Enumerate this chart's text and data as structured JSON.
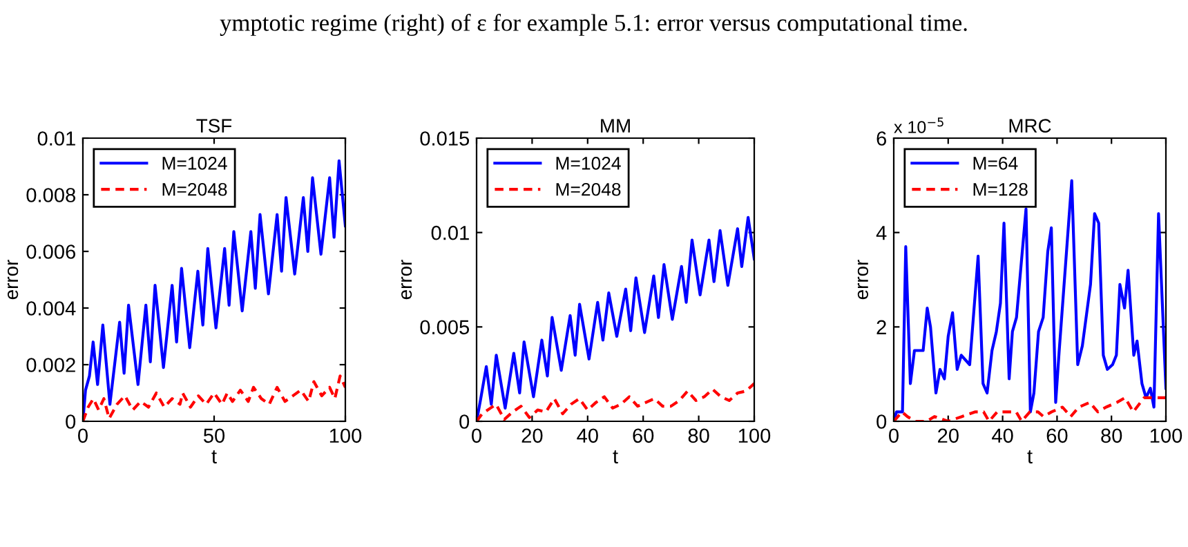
{
  "chart_data": [
    {
      "type": "line",
      "title": "TSF",
      "xlabel": "t",
      "ylabel": "error",
      "xlim": [
        0,
        100
      ],
      "xticks": [
        0,
        50,
        100
      ],
      "ylim": [
        0,
        0.01
      ],
      "yticks": [
        0,
        0.002,
        0.004,
        0.006,
        0.008,
        0.01
      ],
      "legend": "top left",
      "grid": false,
      "annotations": [
        "ymptotic regime (right) of ε for example 5.1: error versus computational time."
      ],
      "series": [
        {
          "name": "M=1024",
          "color": "#0000ff",
          "line_style": "solid",
          "x": [
            0,
            1,
            2.5,
            3.9,
            5.6,
            7.6,
            10.3,
            14,
            15.7,
            17.4,
            21,
            24,
            25.7,
            27.5,
            30.7,
            34,
            35.7,
            37.6,
            40.7,
            43.8,
            45.7,
            47.6,
            50.7,
            54,
            55.7,
            57.5,
            60.7,
            64,
            65.7,
            67.5,
            70.7,
            74,
            75.7,
            77.4,
            80.7,
            84,
            85.7,
            87.5,
            90.7,
            94,
            95.7,
            97.6,
            100
          ],
          "values": [
            0,
            0.0011,
            0.0016,
            0.0028,
            0.0013,
            0.0034,
            0.0006,
            0.0035,
            0.0017,
            0.0041,
            0.0013,
            0.0041,
            0.0021,
            0.0048,
            0.0019,
            0.0048,
            0.0028,
            0.0054,
            0.0026,
            0.0053,
            0.0034,
            0.0061,
            0.0033,
            0.0061,
            0.0041,
            0.0067,
            0.0039,
            0.0067,
            0.0047,
            0.0073,
            0.0045,
            0.0073,
            0.0053,
            0.0079,
            0.0052,
            0.0079,
            0.006,
            0.0086,
            0.0059,
            0.0086,
            0.0065,
            0.0092,
            0.0069
          ]
        },
        {
          "name": "M=2048",
          "color": "#ff0000",
          "line_style": "dashed",
          "x": [
            0,
            2,
            4,
            6,
            8,
            10,
            13,
            16,
            19,
            22,
            25,
            28,
            31,
            34,
            37,
            38,
            41,
            44,
            47,
            50,
            53,
            55,
            57,
            60,
            63,
            65,
            68,
            71,
            74,
            77,
            80,
            83,
            86,
            88,
            91,
            94,
            96,
            98,
            100
          ],
          "values": [
            0,
            0.0005,
            0.0008,
            0.0004,
            0.0008,
            0.0001,
            0.0006,
            0.0009,
            0.0004,
            0.0007,
            0.0005,
            0.001,
            0.0005,
            0.0008,
            0.0006,
            0.001,
            0.0005,
            0.0009,
            0.0006,
            0.001,
            0.0006,
            0.001,
            0.0007,
            0.0011,
            0.0007,
            0.0012,
            0.0008,
            0.0006,
            0.0012,
            0.0007,
            0.0009,
            0.0011,
            0.0007,
            0.0014,
            0.0009,
            0.0012,
            0.0008,
            0.0016,
            0.0012
          ]
        }
      ]
    },
    {
      "type": "line",
      "title": "MM",
      "xlabel": "t",
      "ylabel": "error",
      "xlim": [
        0,
        100
      ],
      "xticks": [
        0,
        20,
        40,
        60,
        80,
        100
      ],
      "ylim": [
        0,
        0.015
      ],
      "yticks": [
        0,
        0.005,
        0.01,
        0.015
      ],
      "legend": "top left",
      "grid": false,
      "series": [
        {
          "name": "M=1024",
          "color": "#0000ff",
          "line_style": "solid",
          "x": [
            0,
            1.5,
            3.5,
            5.3,
            7.1,
            10.3,
            13.4,
            15.5,
            17.1,
            20.5,
            23.5,
            25.5,
            27.2,
            30.5,
            33.7,
            35.5,
            37.1,
            40.5,
            43.6,
            45.5,
            47.6,
            50.5,
            53.7,
            55.5,
            57.4,
            60.5,
            63.8,
            65.5,
            67.5,
            70.5,
            73.8,
            75.5,
            77.6,
            80.5,
            83.7,
            85.5,
            87.7,
            90.5,
            94,
            95.5,
            97.8,
            100
          ],
          "values": [
            0,
            0.0012,
            0.0029,
            0.0009,
            0.0035,
            0.0007,
            0.0036,
            0.0015,
            0.0042,
            0.0013,
            0.0043,
            0.0024,
            0.0055,
            0.0027,
            0.0056,
            0.0035,
            0.0062,
            0.0033,
            0.0063,
            0.0043,
            0.0068,
            0.0045,
            0.007,
            0.0048,
            0.0076,
            0.0047,
            0.0077,
            0.0055,
            0.0083,
            0.0054,
            0.0082,
            0.0063,
            0.0096,
            0.0067,
            0.0096,
            0.0074,
            0.0101,
            0.0072,
            0.0102,
            0.0082,
            0.0108,
            0.0086
          ]
        },
        {
          "name": "M=2048",
          "color": "#ff0000",
          "line_style": "dashed",
          "x": [
            0,
            2,
            5,
            7,
            10,
            13,
            16,
            19,
            22,
            25,
            28,
            31,
            34,
            37,
            40,
            43,
            46,
            49,
            52,
            55,
            58,
            61,
            64,
            67,
            70,
            73,
            76,
            79,
            82,
            85,
            88,
            91,
            94,
            97,
            100
          ],
          "values": [
            0,
            0.0004,
            0.0007,
            0.0009,
            0.0001,
            0.0005,
            0.0008,
            0.0002,
            0.0006,
            0.0005,
            0.0012,
            0.0004,
            0.0009,
            0.0012,
            0.0006,
            0.001,
            0.0013,
            0.0007,
            0.0009,
            0.0013,
            0.0008,
            0.001,
            0.0012,
            0.0008,
            0.0008,
            0.0011,
            0.0016,
            0.0011,
            0.0013,
            0.0017,
            0.0013,
            0.0011,
            0.0015,
            0.0016,
            0.002
          ]
        }
      ]
    },
    {
      "type": "line",
      "title": "MRC",
      "xlabel": "t",
      "ylabel": "error",
      "xlim": [
        0,
        100
      ],
      "xticks": [
        0,
        20,
        40,
        60,
        80,
        100
      ],
      "ylim": [
        0,
        6
      ],
      "yticks": [
        0,
        2,
        4,
        6
      ],
      "legend": "top left",
      "grid": false,
      "annotations": [
        "x 10$^{−5}$"
      ],
      "series": [
        {
          "name": "M=64",
          "color": "#0000ff",
          "line_style": "solid",
          "x": [
            0,
            1,
            2.2,
            3.2,
            4.4,
            6.1,
            7.6,
            10,
            10.8,
            12.3,
            13.5,
            15.5,
            17,
            18.6,
            20,
            21.6,
            23.3,
            24.8,
            27.9,
            31,
            32.8,
            34.3,
            36.1,
            37.7,
            39.2,
            40.5,
            42.4,
            43.6,
            45.1,
            48.6,
            50.2,
            51.5,
            53.2,
            54.9,
            56.6,
            57.9,
            59.5,
            60.8,
            65.4,
            67.6,
            69.3,
            72.3,
            73.8,
            75.3,
            77,
            78.5,
            80.4,
            81.8,
            83.1,
            84.8,
            86.1,
            88.2,
            89.4,
            91.2,
            92.7,
            94.3,
            95.6,
            97.3,
            100
          ],
          "values": [
            0,
            0.2,
            0.2,
            0.2,
            3.7,
            0.8,
            1.5,
            1.5,
            1.5,
            2.4,
            2,
            0.6,
            1.1,
            0.9,
            1.8,
            2.3,
            1.1,
            1.4,
            1.2,
            3.5,
            0.8,
            0.6,
            1.5,
            1.9,
            2.5,
            4.2,
            0.9,
            1.9,
            2.2,
            4.5,
            0.2,
            0.6,
            1.9,
            2.2,
            3.6,
            4.1,
            0.4,
            1.5,
            5.1,
            1.2,
            1.6,
            2.9,
            4.4,
            4.2,
            1.4,
            1.1,
            1.2,
            1.4,
            2.9,
            2.4,
            3.2,
            1.4,
            1.7,
            0.8,
            0.5,
            0.7,
            0.3,
            4.4,
            0.7
          ]
        },
        {
          "name": "M=128",
          "color": "#ff0000",
          "line_style": "dashed",
          "x": [
            0,
            3,
            5,
            8,
            12,
            15,
            20,
            25,
            30,
            33,
            35,
            38,
            42,
            45,
            47,
            50,
            53,
            55,
            58,
            62,
            65,
            68,
            72,
            75,
            78,
            82,
            85,
            88,
            92,
            96,
            98,
            100
          ],
          "values": [
            0,
            0.2,
            0.1,
            0,
            0,
            0.1,
            0,
            0.1,
            0.2,
            0.2,
            0,
            0.2,
            0.2,
            0.2,
            0,
            0.2,
            0.2,
            0.1,
            0.2,
            0.3,
            0.1,
            0.3,
            0.4,
            0.2,
            0.3,
            0.4,
            0.5,
            0.2,
            0.5,
            0.5,
            0.5,
            0.5
          ]
        }
      ]
    }
  ]
}
